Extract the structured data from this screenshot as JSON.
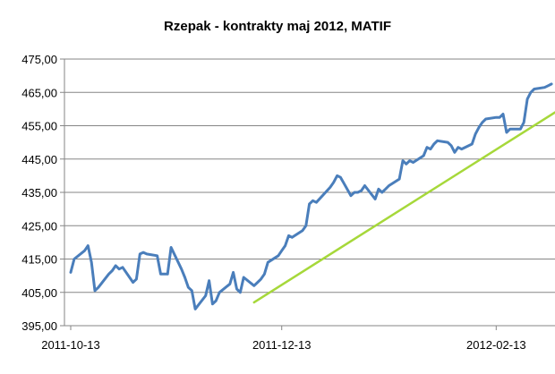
{
  "chart_data": {
    "type": "line",
    "title": "Rzepak - kontrakty maj 2012, MATIF",
    "xlabel": "",
    "ylabel": "",
    "ylim": [
      395,
      475
    ],
    "yticks": [
      "395,00",
      "405,00",
      "415,00",
      "425,00",
      "435,00",
      "445,00",
      "455,00",
      "465,00",
      "475,00"
    ],
    "xticks": [
      "2011-10-13",
      "2011-12-13",
      "2012-02-13"
    ],
    "grid": "horizontal",
    "legend": "none",
    "series": [
      {
        "color": "#4a7ebb",
        "points": [
          [
            "2011-10-13",
            411.0
          ],
          [
            "2011-10-14",
            415.0
          ],
          [
            "2011-10-17",
            417.5
          ],
          [
            "2011-10-18",
            419.0
          ],
          [
            "2011-10-19",
            414.0
          ],
          [
            "2011-10-20",
            405.5
          ],
          [
            "2011-10-21",
            406.5
          ],
          [
            "2011-10-24",
            410.5
          ],
          [
            "2011-10-25",
            411.5
          ],
          [
            "2011-10-26",
            413.0
          ],
          [
            "2011-10-27",
            412.0
          ],
          [
            "2011-10-28",
            412.5
          ],
          [
            "2011-10-31",
            408.0
          ],
          [
            "2011-11-01",
            409.0
          ],
          [
            "2011-11-02",
            416.5
          ],
          [
            "2011-11-03",
            417.0
          ],
          [
            "2011-11-04",
            416.5
          ],
          [
            "2011-11-07",
            416.0
          ],
          [
            "2011-11-08",
            410.5
          ],
          [
            "2011-11-09",
            410.5
          ],
          [
            "2011-11-10",
            410.5
          ],
          [
            "2011-11-11",
            418.5
          ],
          [
            "2011-11-14",
            412.0
          ],
          [
            "2011-11-15",
            409.5
          ],
          [
            "2011-11-16",
            406.5
          ],
          [
            "2011-11-17",
            405.5
          ],
          [
            "2011-11-18",
            400.0
          ],
          [
            "2011-11-21",
            404.0
          ],
          [
            "2011-11-22",
            408.5
          ],
          [
            "2011-11-23",
            401.5
          ],
          [
            "2011-11-24",
            402.5
          ],
          [
            "2011-11-25",
            405.0
          ],
          [
            "2011-11-28",
            407.5
          ],
          [
            "2011-11-29",
            411.0
          ],
          [
            "2011-11-30",
            406.0
          ],
          [
            "2011-12-01",
            405.0
          ],
          [
            "2011-12-02",
            409.5
          ],
          [
            "2011-12-05",
            407.0
          ],
          [
            "2011-12-06",
            408.0
          ],
          [
            "2011-12-07",
            409.0
          ],
          [
            "2011-12-08",
            410.5
          ],
          [
            "2011-12-09",
            414.0
          ],
          [
            "2011-12-12",
            416.0
          ],
          [
            "2011-12-13",
            417.5
          ],
          [
            "2011-12-14",
            419.0
          ],
          [
            "2011-12-15",
            422.0
          ],
          [
            "2011-12-16",
            421.5
          ],
          [
            "2011-12-19",
            423.5
          ],
          [
            "2011-12-20",
            425.0
          ],
          [
            "2011-12-21",
            431.5
          ],
          [
            "2011-12-22",
            432.5
          ],
          [
            "2011-12-23",
            432.0
          ],
          [
            "2011-12-27",
            436.5
          ],
          [
            "2011-12-28",
            438.0
          ],
          [
            "2011-12-29",
            440.0
          ],
          [
            "2011-12-30",
            439.5
          ],
          [
            "2012-01-02",
            434.0
          ],
          [
            "2012-01-03",
            435.0
          ],
          [
            "2012-01-04",
            435.0
          ],
          [
            "2012-01-05",
            435.5
          ],
          [
            "2012-01-06",
            437.0
          ],
          [
            "2012-01-09",
            433.0
          ],
          [
            "2012-01-10",
            436.0
          ],
          [
            "2012-01-11",
            435.0
          ],
          [
            "2012-01-12",
            436.0
          ],
          [
            "2012-01-13",
            437.0
          ],
          [
            "2012-01-16",
            439.0
          ],
          [
            "2012-01-17",
            444.5
          ],
          [
            "2012-01-18",
            443.5
          ],
          [
            "2012-01-19",
            444.5
          ],
          [
            "2012-01-20",
            444.0
          ],
          [
            "2012-01-23",
            446.0
          ],
          [
            "2012-01-24",
            448.5
          ],
          [
            "2012-01-25",
            448.0
          ],
          [
            "2012-01-26",
            449.5
          ],
          [
            "2012-01-27",
            450.5
          ],
          [
            "2012-01-30",
            450.0
          ],
          [
            "2012-01-31",
            449.0
          ],
          [
            "2012-02-01",
            447.0
          ],
          [
            "2012-02-02",
            448.5
          ],
          [
            "2012-02-03",
            448.0
          ],
          [
            "2012-02-06",
            449.5
          ],
          [
            "2012-02-07",
            452.5
          ],
          [
            "2012-02-08",
            454.5
          ],
          [
            "2012-02-09",
            456.0
          ],
          [
            "2012-02-10",
            457.0
          ],
          [
            "2012-02-13",
            457.5
          ],
          [
            "2012-02-14",
            457.5
          ],
          [
            "2012-02-15",
            458.5
          ],
          [
            "2012-02-16",
            453.0
          ],
          [
            "2012-02-17",
            454.0
          ],
          [
            "2012-02-20",
            454.0
          ],
          [
            "2012-02-21",
            456.0
          ],
          [
            "2012-02-22",
            463.0
          ],
          [
            "2012-02-23",
            465.0
          ],
          [
            "2012-02-24",
            466.0
          ],
          [
            "2012-02-27",
            466.5
          ],
          [
            "2012-02-28",
            467.0
          ],
          [
            "2012-02-29",
            467.5
          ]
        ]
      },
      {
        "color": "#a6d83a",
        "points": [
          [
            "2011-12-05",
            402.0
          ],
          [
            "2012-03-01",
            459.0
          ]
        ]
      }
    ]
  }
}
